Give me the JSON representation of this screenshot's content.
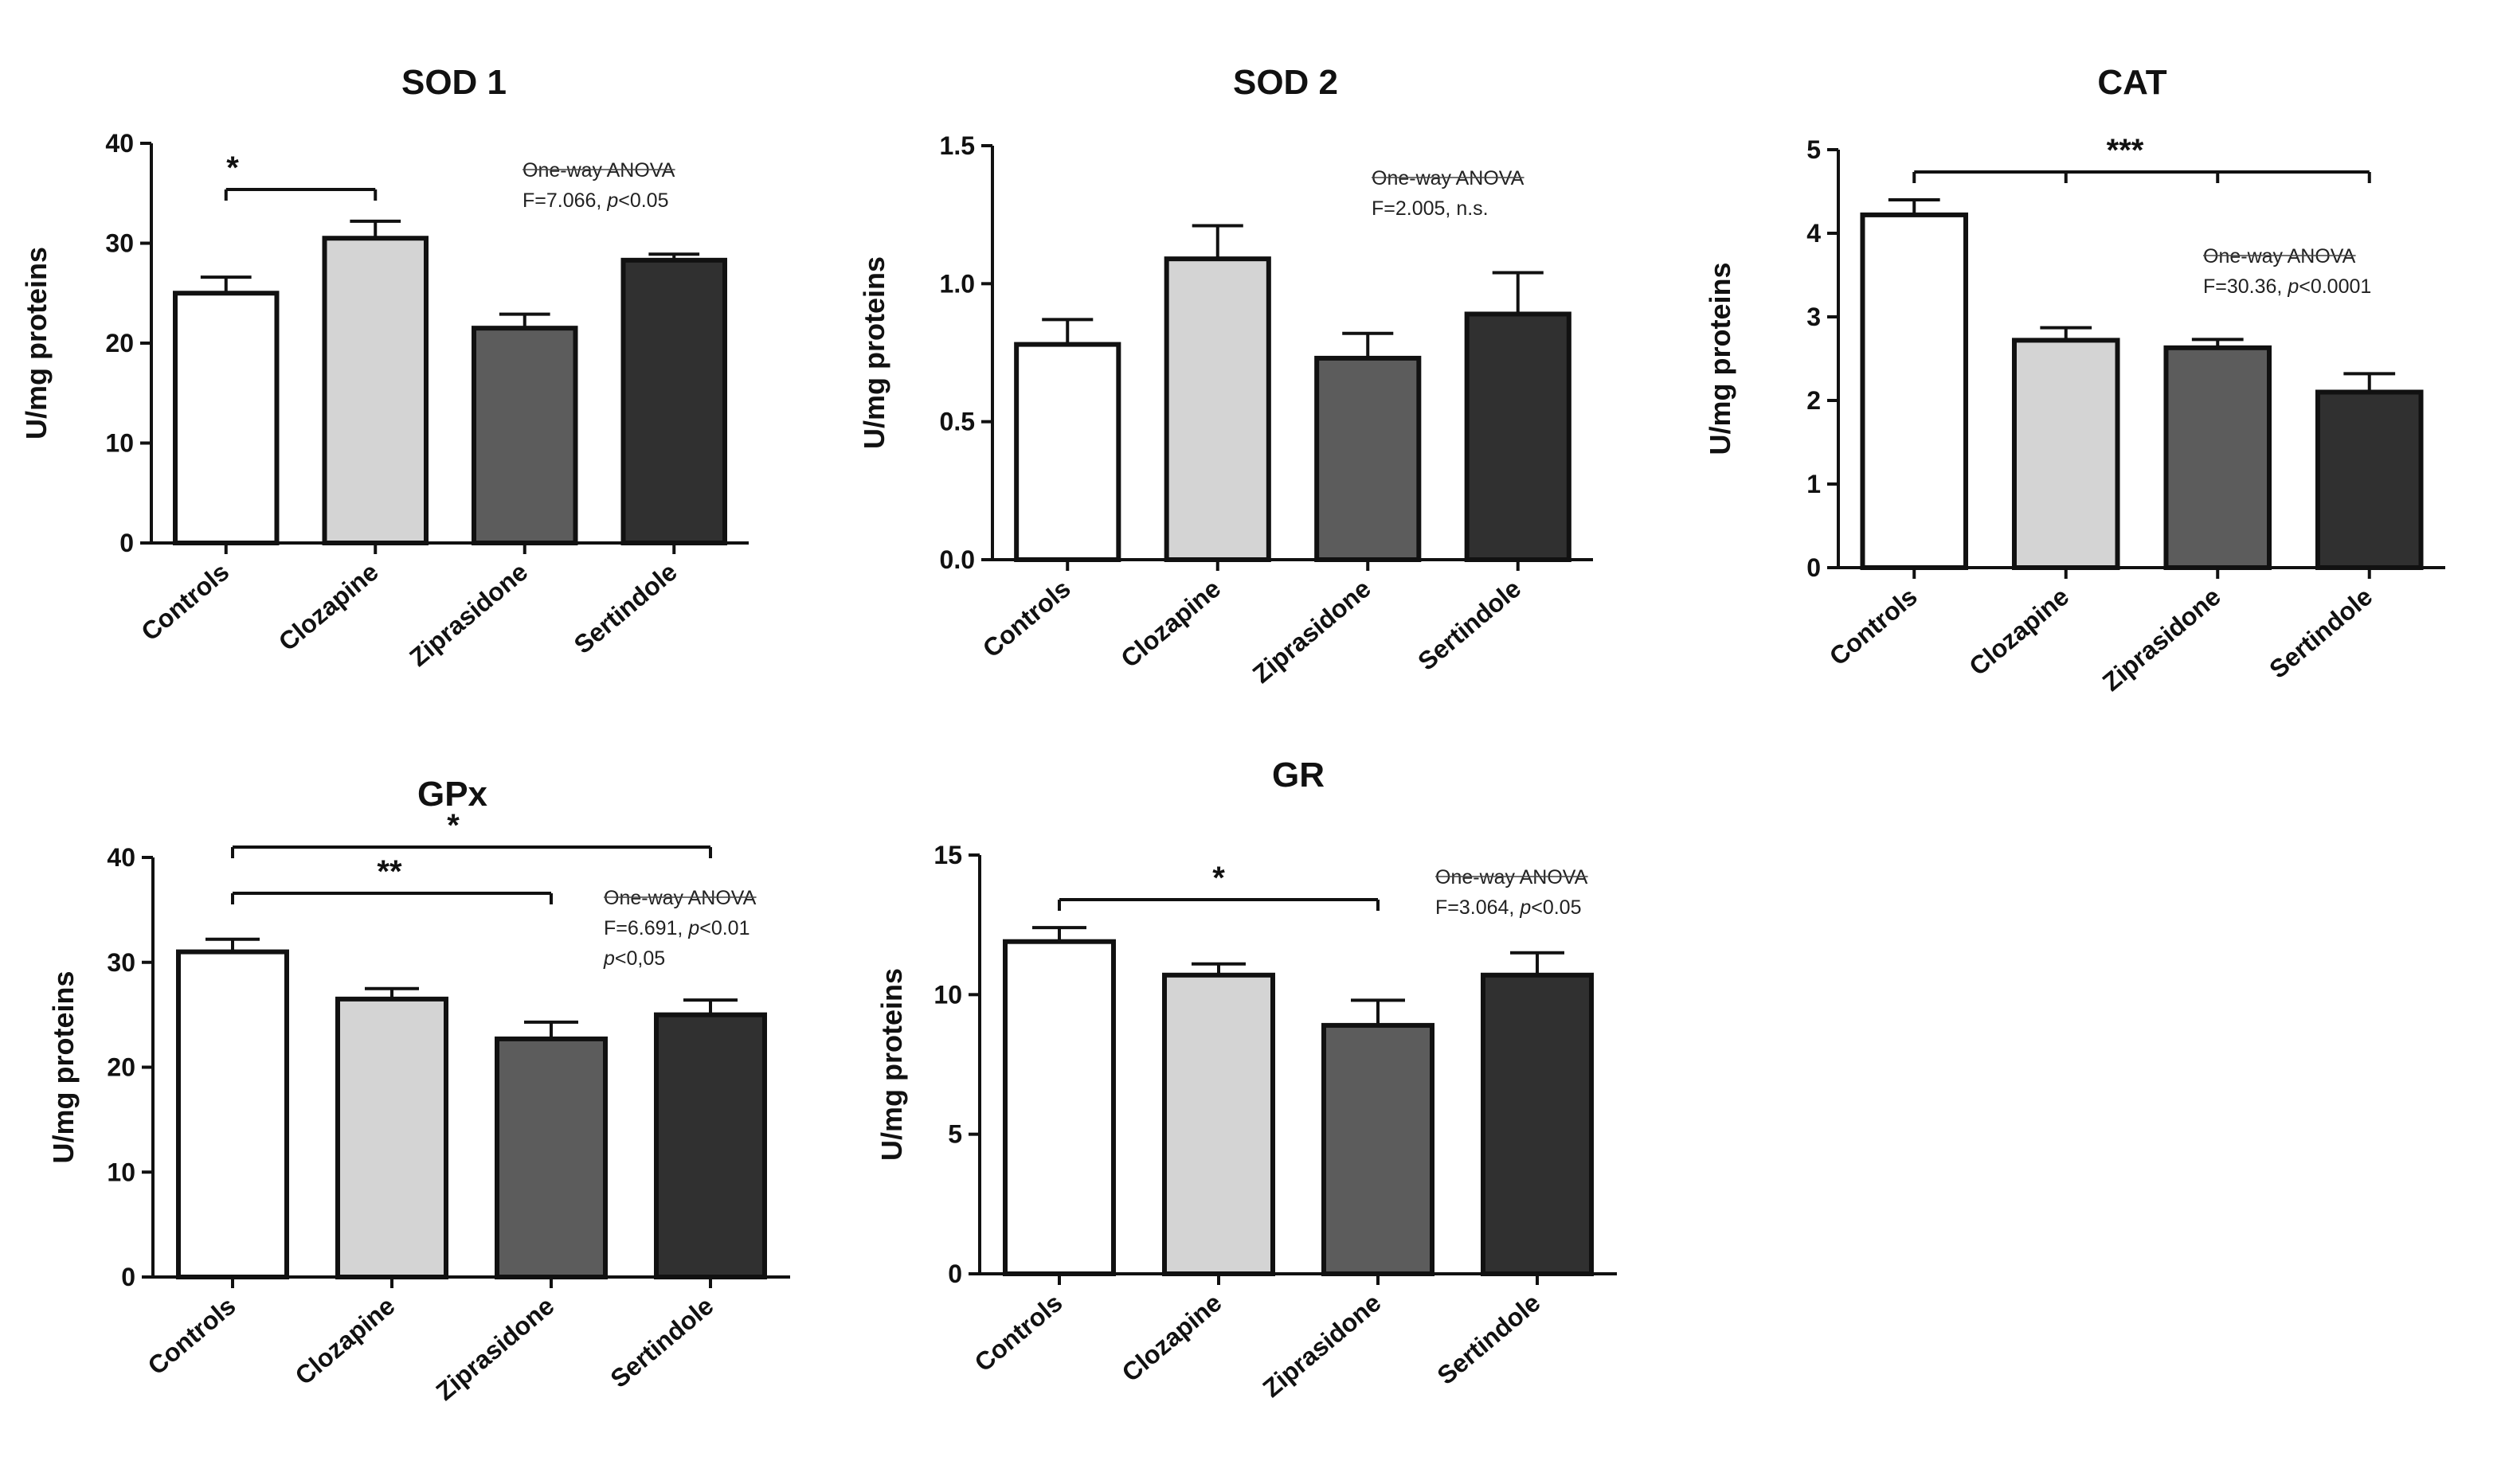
{
  "chart_data": [
    {
      "type": "bar",
      "title": "SOD 1",
      "ylabel": "U/mg proteins",
      "xlabel": "",
      "ylim": [
        0,
        40
      ],
      "yticks": [
        "0",
        "10",
        "20",
        "30",
        "40"
      ],
      "categories": [
        "Controls",
        "Clozapine",
        "Ziprasidone",
        "Sertindole"
      ],
      "values": [
        25,
        30.5,
        21.5,
        28.3
      ],
      "errors": [
        1.6,
        1.7,
        1.4,
        0.6
      ],
      "bar_colors": [
        "#ffffff",
        "#d4d4d4",
        "#5c5c5c",
        "#303030"
      ],
      "annotation": [
        "One-way ANOVA",
        "F=7.066, ",
        "p",
        "<0.05"
      ],
      "significance": [
        {
          "from": 0,
          "to": 1,
          "label": "*"
        }
      ]
    },
    {
      "type": "bar",
      "title": "SOD 2",
      "ylabel": "U/mg proteins",
      "xlabel": "",
      "ylim": [
        0,
        1.5
      ],
      "yticks": [
        "0.0",
        "0.5",
        "1.0",
        "1.5"
      ],
      "categories": [
        "Controls",
        "Clozapine",
        "Ziprasidone",
        "Sertindole"
      ],
      "values": [
        0.78,
        1.09,
        0.73,
        0.89
      ],
      "errors": [
        0.09,
        0.12,
        0.09,
        0.15
      ],
      "bar_colors": [
        "#ffffff",
        "#d4d4d4",
        "#5c5c5c",
        "#303030"
      ],
      "annotation": [
        "One-way ANOVA",
        "F=2.005, n.s."
      ],
      "significance": []
    },
    {
      "type": "bar",
      "title": "CAT",
      "ylabel": "U/mg proteins",
      "xlabel": "",
      "ylim": [
        0,
        5
      ],
      "yticks": [
        "0",
        "1",
        "2",
        "3",
        "4",
        "5"
      ],
      "categories": [
        "Controls",
        "Clozapine",
        "Ziprasidone",
        "Sertindole"
      ],
      "values": [
        4.22,
        2.72,
        2.63,
        2.1
      ],
      "errors": [
        0.18,
        0.15,
        0.1,
        0.22
      ],
      "bar_colors": [
        "#ffffff",
        "#d4d4d4",
        "#5c5c5c",
        "#303030"
      ],
      "annotation": [
        "One-way ANOVA",
        "F=30.36, ",
        "p",
        "<0.0001"
      ],
      "significance": [
        {
          "from": 0,
          "to": 3,
          "label": "***",
          "ticks": [
            1,
            2
          ]
        }
      ]
    },
    {
      "type": "bar",
      "title": "GPx",
      "ylabel": "U/mg proteins",
      "xlabel": "",
      "ylim": [
        0,
        40
      ],
      "yticks": [
        "0",
        "10",
        "20",
        "30",
        "40"
      ],
      "categories": [
        "Controls",
        "Clozapine",
        "Ziprasidone",
        "Sertindole"
      ],
      "values": [
        31,
        26.5,
        22.7,
        25
      ],
      "errors": [
        1.2,
        1.0,
        1.6,
        1.4
      ],
      "bar_colors": [
        "#ffffff",
        "#d4d4d4",
        "#5c5c5c",
        "#303030"
      ],
      "annotation": [
        "One-way ANOVA",
        "F=6.691, ",
        "p",
        "<0.01",
        "p",
        "<0,05"
      ],
      "significance": [
        {
          "from": 0,
          "to": 3,
          "label": "*"
        },
        {
          "from": 0,
          "to": 2,
          "label": "**"
        }
      ]
    },
    {
      "type": "bar",
      "title": "GR",
      "ylabel": "U/mg proteins",
      "xlabel": "",
      "ylim": [
        0,
        15
      ],
      "yticks": [
        "0",
        "5",
        "10",
        "15"
      ],
      "categories": [
        "Controls",
        "Clozapine",
        "Ziprasidone",
        "Sertindole"
      ],
      "values": [
        11.9,
        10.7,
        8.9,
        10.7
      ],
      "errors": [
        0.5,
        0.4,
        0.9,
        0.8
      ],
      "bar_colors": [
        "#ffffff",
        "#d4d4d4",
        "#5c5c5c",
        "#303030"
      ],
      "annotation": [
        "One-way ANOVA",
        "F=3.064, ",
        "p",
        "<0.05"
      ],
      "significance": [
        {
          "from": 0,
          "to": 2,
          "label": "*"
        }
      ]
    }
  ]
}
